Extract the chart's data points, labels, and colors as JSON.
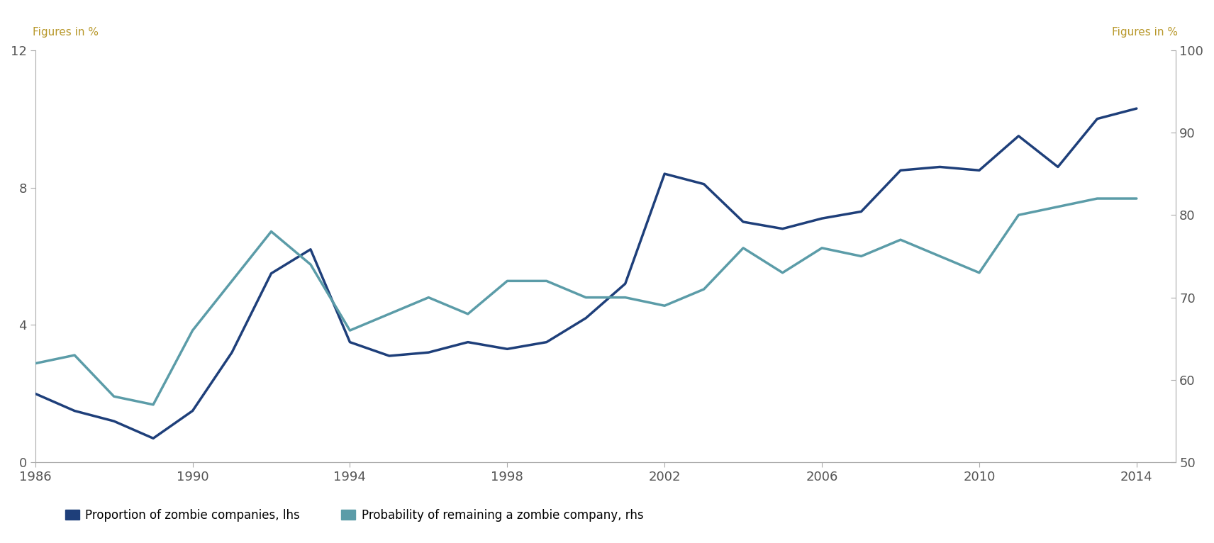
{
  "ylabel_left": "Figures in %",
  "ylabel_right": "Figures in %",
  "xlim": [
    1986,
    2015
  ],
  "ylim_left": [
    0,
    12
  ],
  "ylim_right": [
    50,
    100
  ],
  "yticks_left": [
    0,
    4,
    8,
    12
  ],
  "yticks_right": [
    50,
    60,
    70,
    80,
    90,
    100
  ],
  "xticks": [
    1986,
    1990,
    1994,
    1998,
    2002,
    2006,
    2010,
    2014
  ],
  "proportion_zombie": {
    "label": "Proportion of zombie companies, lhs",
    "color": "#1e3f7a",
    "linewidth": 2.5,
    "years": [
      1986,
      1987,
      1988,
      1989,
      1990,
      1991,
      1992,
      1993,
      1994,
      1995,
      1996,
      1997,
      1998,
      1999,
      2000,
      2001,
      2002,
      2003,
      2004,
      2005,
      2006,
      2007,
      2008,
      2009,
      2010,
      2011,
      2012,
      2013,
      2014
    ],
    "values": [
      2.0,
      1.5,
      1.2,
      0.7,
      1.5,
      3.2,
      5.5,
      6.2,
      3.5,
      3.1,
      3.2,
      3.5,
      3.3,
      3.5,
      4.2,
      5.2,
      8.4,
      8.1,
      7.0,
      6.8,
      7.1,
      7.3,
      8.5,
      8.6,
      8.5,
      9.5,
      8.6,
      10.0,
      10.3
    ]
  },
  "probability_zombie": {
    "label": "Probability of remaining a zombie company, rhs",
    "color": "#5b9ca8",
    "linewidth": 2.5,
    "years": [
      1986,
      1987,
      1988,
      1989,
      1990,
      1991,
      1992,
      1993,
      1994,
      1995,
      1996,
      1997,
      1998,
      1999,
      2000,
      2001,
      2002,
      2003,
      2004,
      2005,
      2006,
      2007,
      2008,
      2009,
      2010,
      2011,
      2012,
      2013,
      2014
    ],
    "values": [
      62,
      63,
      58,
      57,
      66,
      72,
      78,
      74,
      66,
      68,
      70,
      68,
      72,
      72,
      70,
      70,
      69,
      71,
      76,
      73,
      76,
      75,
      77,
      75,
      73,
      80,
      81,
      82,
      82
    ]
  },
  "background_color": "#ffffff",
  "legend_color_proportion": "#1e3f7a",
  "legend_color_probability": "#5b9ca8",
  "label_color": "#b8982a",
  "spine_color": "#aaaaaa",
  "tick_label_color": "#555555"
}
